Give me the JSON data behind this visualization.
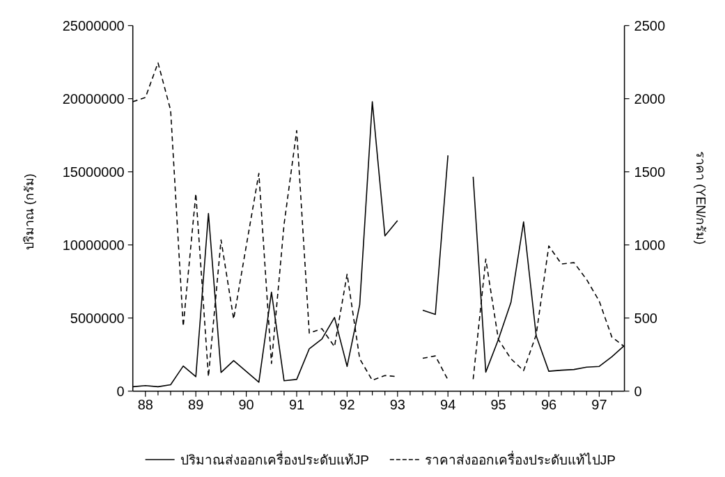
{
  "chart_data": {
    "type": "line",
    "x": [
      87.75,
      88,
      88.25,
      88.5,
      88.75,
      89,
      89.25,
      89.5,
      89.75,
      90,
      90.25,
      90.5,
      90.75,
      91,
      91.25,
      91.5,
      91.75,
      92,
      92.25,
      92.5,
      92.75,
      93,
      93.25,
      93.5,
      93.75,
      94,
      94.25,
      94.5,
      94.75,
      95,
      95.25,
      95.5,
      95.75,
      96,
      96.25,
      96.5,
      96.75,
      97,
      97.25,
      97.5
    ],
    "series": [
      {
        "name": "ปริมาณส่งออกเครื่องประดับแท้JP",
        "color": "#000000",
        "line_style": "solid",
        "values": [
          300000,
          380000,
          300000,
          440000,
          1720000,
          990000,
          12150000,
          1280000,
          2090000,
          1350000,
          610000,
          6770000,
          710000,
          800000,
          2900000,
          3560000,
          5040000,
          1690000,
          5910000,
          19790000,
          10620000,
          11660000,
          null,
          5530000,
          5250000,
          16120000,
          null,
          14660000,
          1300000,
          3530000,
          6080000,
          11580000,
          3780000,
          1360000,
          1430000,
          1480000,
          1640000,
          1690000,
          2350000,
          3120000
        ]
      },
      {
        "name": "ราคาส่งออกเครื่องประดับแท้ไปJP",
        "color": "#000000",
        "line_style": "dashed",
        "axis": "y2",
        "values": [
          1979,
          2008,
          2245,
          1921,
          443,
          1351,
          99,
          1034,
          493,
          993,
          1489,
          189,
          1141,
          1782,
          397,
          427,
          304,
          800,
          221,
          74,
          107,
          99,
          null,
          225,
          241,
          77,
          null,
          82,
          903,
          353,
          221,
          140,
          386,
          993,
          870,
          879,
          763,
          616,
          370,
          304
        ]
      }
    ],
    "xlim": [
      87.75,
      97.5
    ],
    "xticks": [
      88,
      {
        "value": 88.25,
        "label": null
      },
      {
        "value": 88.5,
        "label": null
      },
      {
        "value": 88.75,
        "label": null
      },
      89,
      {
        "value": 89.25,
        "label": null
      },
      {
        "value": 89.5,
        "label": null
      },
      {
        "value": 89.75,
        "label": null
      },
      90,
      {
        "value": 90.25,
        "label": null
      },
      {
        "value": 90.5,
        "label": null
      },
      {
        "value": 90.75,
        "label": null
      },
      91,
      {
        "value": 91.25,
        "label": null
      },
      {
        "value": 91.5,
        "label": null
      },
      {
        "value": 91.75,
        "label": null
      },
      92,
      {
        "value": 92.25,
        "label": null
      },
      {
        "value": 92.5,
        "label": null
      },
      {
        "value": 92.75,
        "label": null
      },
      93,
      {
        "value": 93.25,
        "label": null
      },
      {
        "value": 93.5,
        "label": null
      },
      {
        "value": 93.75,
        "label": null
      },
      94,
      {
        "value": 94.25,
        "label": null
      },
      {
        "value": 94.5,
        "label": null
      },
      {
        "value": 94.75,
        "label": null
      },
      95,
      {
        "value": 95.25,
        "label": null
      },
      {
        "value": 95.5,
        "label": null
      },
      {
        "value": 95.75,
        "label": null
      },
      96,
      {
        "value": 96.25,
        "label": null
      },
      {
        "value": 96.5,
        "label": null
      },
      {
        "value": 96.75,
        "label": null
      },
      97,
      {
        "value": 97.25,
        "label": null
      }
    ],
    "ylim": [
      0,
      25000000
    ],
    "yticks": [
      0,
      5000000,
      10000000,
      15000000,
      20000000,
      25000000
    ],
    "y2lim": [
      0,
      2500
    ],
    "y2ticks": [
      0,
      500,
      1000,
      1500,
      2000,
      2500
    ],
    "ylabel": "ปริมาณ (กรัม)",
    "y2label": "ราคา (YEN/กรัม)",
    "grid": false,
    "legend": "bottom"
  }
}
